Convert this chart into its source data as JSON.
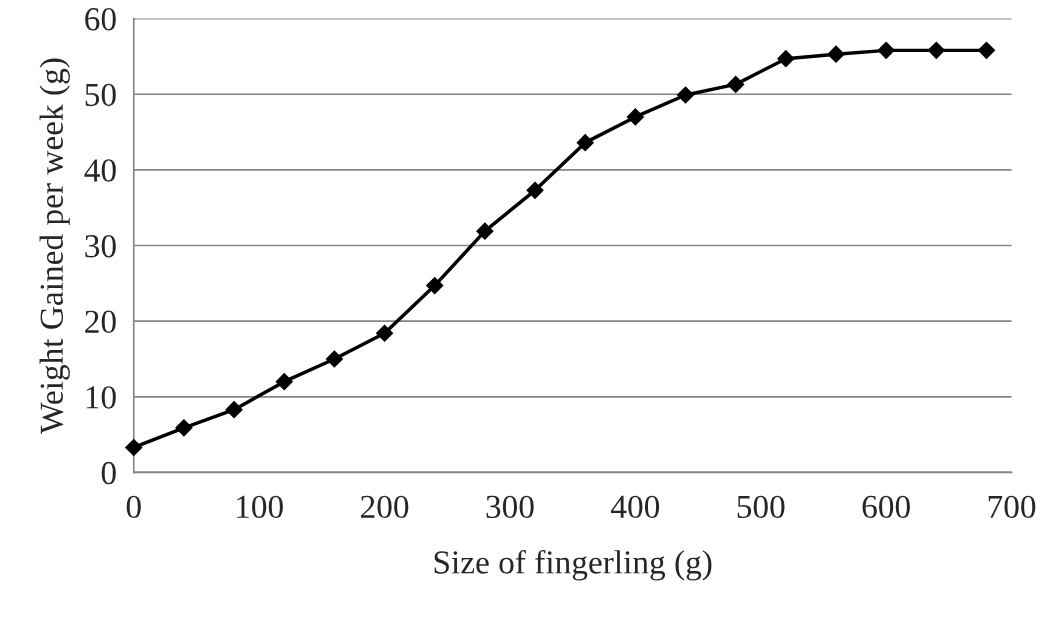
{
  "chart_data": {
    "type": "line",
    "xlabel": "Size of fingerling (g)",
    "ylabel": "Weight Gained per week (g)",
    "series": [
      {
        "color": "#000000",
        "x": [
          0,
          40,
          80,
          120,
          160,
          200,
          240,
          280,
          320,
          360,
          400,
          440,
          480,
          520,
          560,
          600,
          640,
          680
        ],
        "values": [
          3.3,
          5.9,
          8.3,
          12.0,
          15.0,
          18.4,
          24.7,
          31.9,
          37.3,
          43.6,
          47.0,
          49.9,
          51.3,
          54.7,
          55.3,
          55.8,
          55.8,
          55.8
        ]
      }
    ],
    "xlim": [
      0,
      700
    ],
    "xticks": [
      0,
      100,
      200,
      300,
      400,
      500,
      600,
      700
    ],
    "ylim": [
      0,
      60
    ],
    "yticks": [
      0,
      10,
      20,
      30,
      40,
      50,
      60
    ],
    "grid": "y",
    "marker": "diamond",
    "line_style": "solid",
    "legend": false
  }
}
